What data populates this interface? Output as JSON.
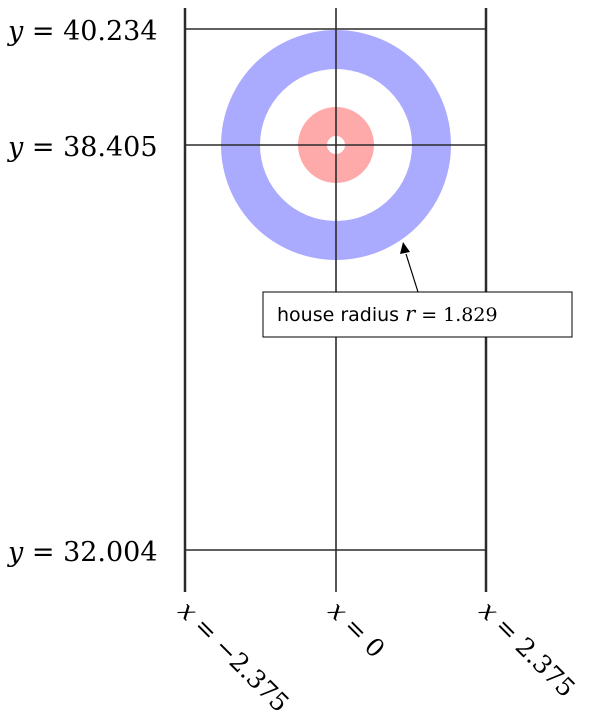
{
  "diagram": {
    "y_labels": [
      {
        "prefix": "y",
        "eq": " = ",
        "value": "40.234"
      },
      {
        "prefix": "y",
        "eq": " = ",
        "value": "38.405"
      },
      {
        "prefix": "y",
        "eq": " = ",
        "value": "32.004"
      }
    ],
    "x_labels": [
      {
        "prefix": "x",
        "eq": " = ",
        "value": "−2.375"
      },
      {
        "prefix": "x",
        "eq": " = ",
        "value": "0"
      },
      {
        "prefix": "x",
        "eq": " = ",
        "value": "2.375"
      }
    ],
    "callout": {
      "text": "house radius ",
      "var": "r",
      "eq": " = ",
      "value": "1.829"
    },
    "colors": {
      "outer_ring": "#aaaaff",
      "inner_ring": "#ffaaaa",
      "lines": "#000000"
    }
  }
}
